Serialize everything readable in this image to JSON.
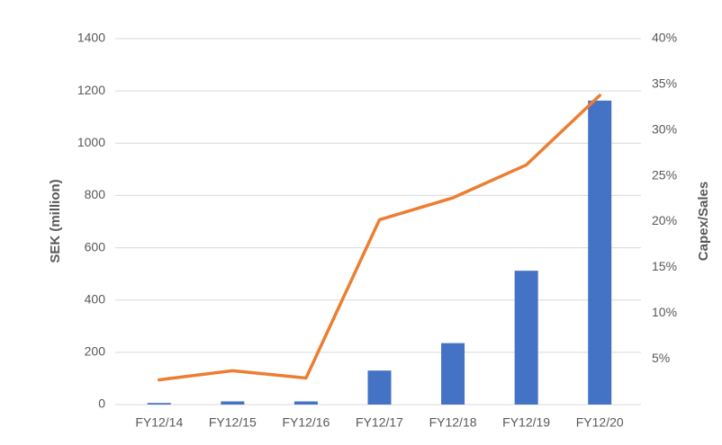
{
  "chart_data": {
    "type": "bar-line",
    "ylabel": "SEK (million)",
    "y2label": "Capex/Sales",
    "categories": [
      "FY12/14",
      "FY12/15",
      "FY12/16",
      "FY12/17",
      "FY12/18",
      "FY12/19",
      "FY12/20"
    ],
    "series": [
      {
        "type": "bar",
        "color": "#4472c4",
        "values": [
          6,
          12,
          12,
          130,
          235,
          512,
          1163
        ]
      },
      {
        "type": "line",
        "axis": "y2",
        "color": "#ed7d31",
        "values": [
          2.7,
          3.7,
          2.9,
          20.2,
          22.6,
          26.2,
          33.8
        ]
      }
    ],
    "ylim": [
      0,
      1400
    ],
    "yticks": [
      0,
      200,
      400,
      600,
      800,
      1000,
      1200,
      1400
    ],
    "y2lim": [
      0,
      40
    ],
    "y2ticks": [
      {
        "value": 5,
        "label": "5%"
      },
      {
        "value": 10,
        "label": "10%"
      },
      {
        "value": 15,
        "label": "15%"
      },
      {
        "value": 20,
        "label": "20%"
      },
      {
        "value": 25,
        "label": "25%"
      },
      {
        "value": 30,
        "label": "30%"
      },
      {
        "value": 35,
        "label": "35%"
      },
      {
        "value": 40,
        "label": "40%"
      }
    ],
    "grid": true
  }
}
